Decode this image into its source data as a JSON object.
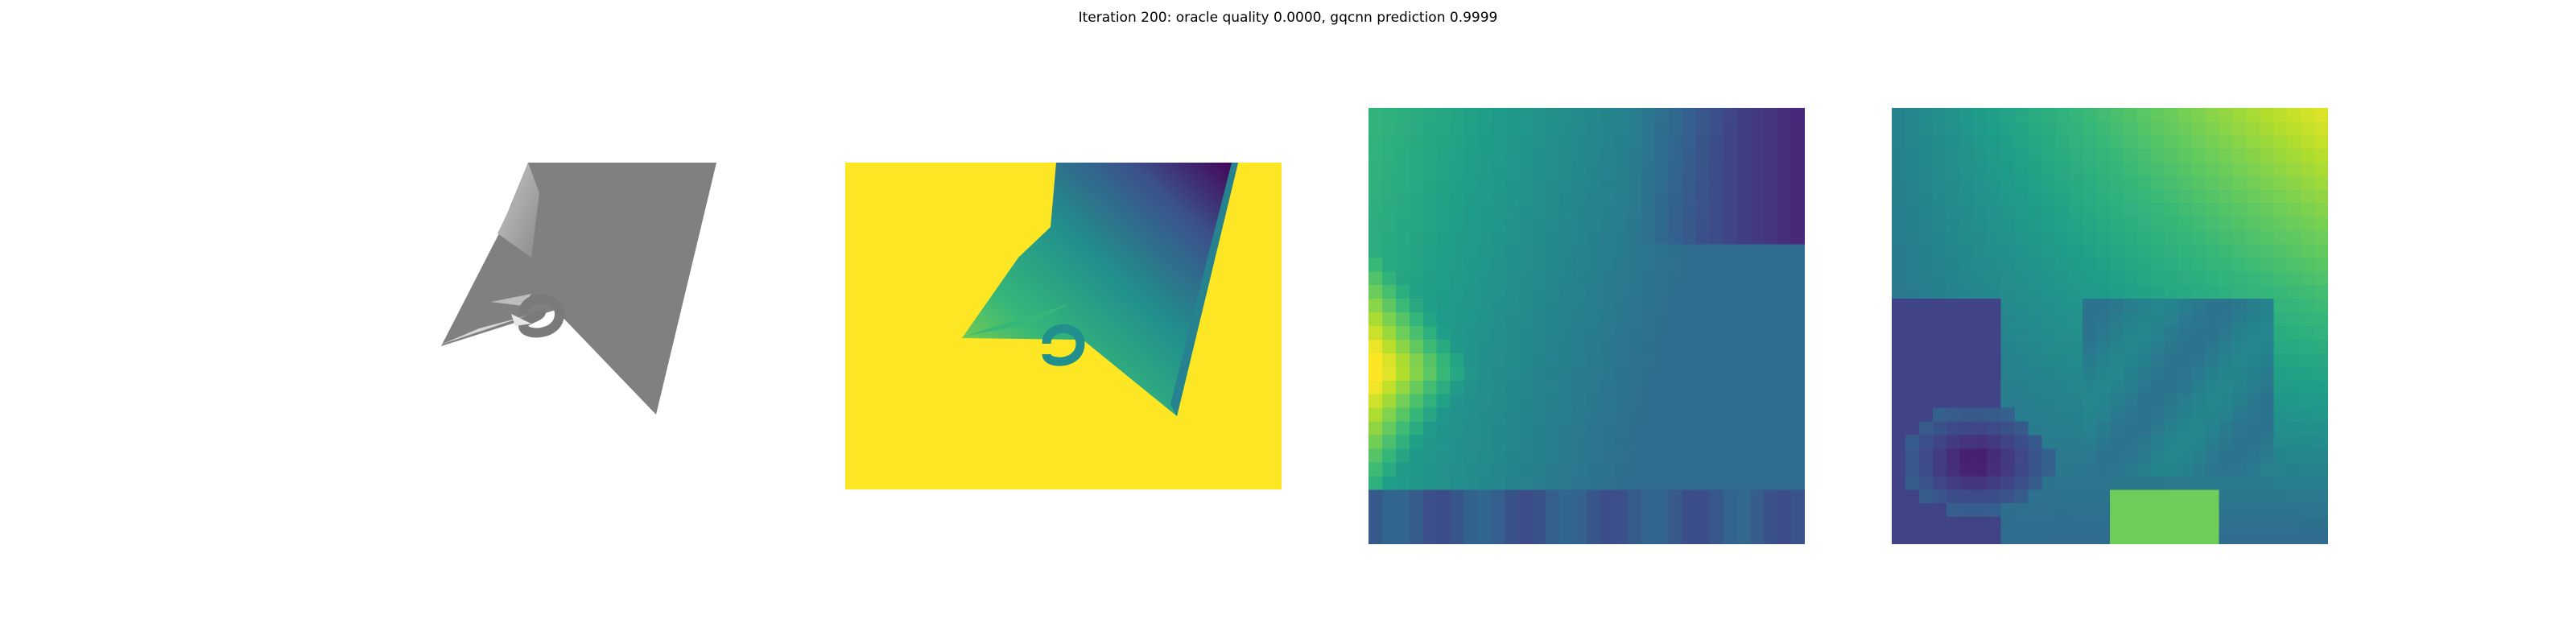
{
  "title": "Iteration 200: oracle quality 0.0000, gqcnn prediction 0.9999",
  "colors": {
    "render_gray": "#808080",
    "render_light": "#b5b5b5",
    "viridis_yellow": "#fde725",
    "viridis_teal": "#21908d",
    "viridis_purple": "#440154"
  },
  "panels": [
    {
      "name": "rendered-object"
    },
    {
      "name": "depth-image"
    },
    {
      "name": "depth-crop"
    },
    {
      "name": "gradient-crop"
    }
  ]
}
